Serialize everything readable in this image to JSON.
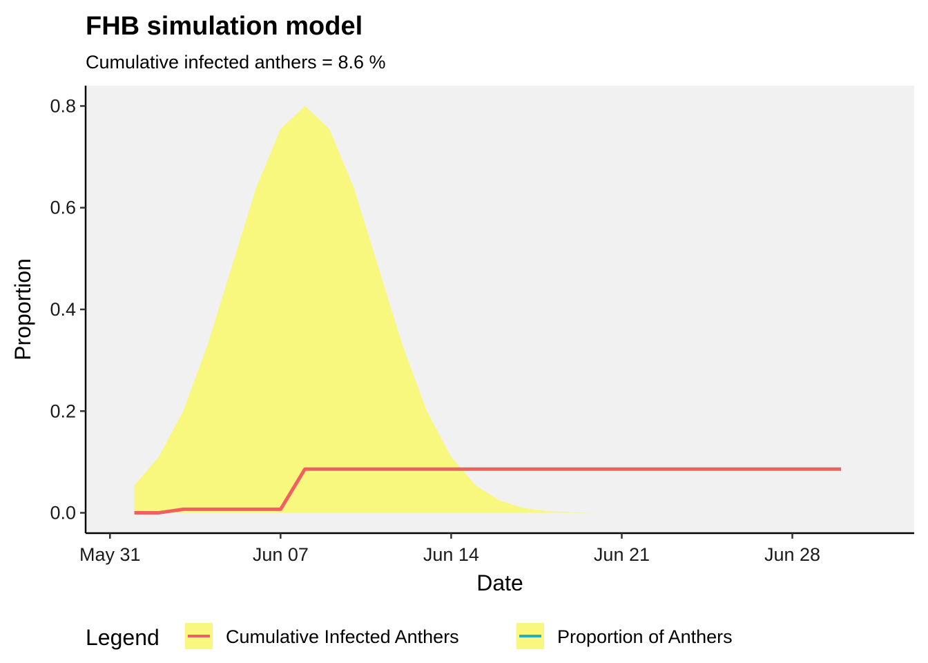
{
  "chart_data": {
    "type": "area",
    "title": "FHB simulation model",
    "subtitle": "Cumulative infected anthers =  8.6 %",
    "xlabel": "Date",
    "ylabel": "Proportion",
    "xlim": [
      "2021-05-30",
      "2021-07-03"
    ],
    "ylim": [
      -0.04,
      0.84
    ],
    "x_ticks": [
      {
        "date": "2021-05-31",
        "label": "May 31"
      },
      {
        "date": "2021-06-07",
        "label": "Jun 07"
      },
      {
        "date": "2021-06-14",
        "label": "Jun 14"
      },
      {
        "date": "2021-06-21",
        "label": "Jun 21"
      },
      {
        "date": "2021-06-28",
        "label": "Jun 28"
      }
    ],
    "y_ticks": [
      {
        "value": 0.0,
        "label": "0.0"
      },
      {
        "value": 0.2,
        "label": "0.2"
      },
      {
        "value": 0.4,
        "label": "0.4"
      },
      {
        "value": 0.6,
        "label": "0.6"
      },
      {
        "value": 0.8,
        "label": "0.8"
      }
    ],
    "grid": false,
    "panel_background": "#f1f1f1",
    "legend": {
      "title": "Legend",
      "position": "bottom",
      "entries": [
        {
          "label": "Cumulative Infected Anthers",
          "line_color": "#f06060",
          "key_fill": "#f8f87e"
        },
        {
          "label": "Proportion of Anthers",
          "line_color": "#1fb4b9",
          "key_fill": "#f8f87e"
        }
      ]
    },
    "series": [
      {
        "name": "Proportion of Anthers",
        "kind": "area",
        "color": "#f8f87e",
        "points": [
          [
            "2021-06-01",
            0.054
          ],
          [
            "2021-06-02",
            0.11
          ],
          [
            "2021-06-03",
            0.2
          ],
          [
            "2021-06-04",
            0.33
          ],
          [
            "2021-06-05",
            0.485
          ],
          [
            "2021-06-06",
            0.64
          ],
          [
            "2021-06-07",
            0.755
          ],
          [
            "2021-06-08",
            0.8
          ],
          [
            "2021-06-09",
            0.755
          ],
          [
            "2021-06-10",
            0.64
          ],
          [
            "2021-06-11",
            0.485
          ],
          [
            "2021-06-12",
            0.33
          ],
          [
            "2021-06-13",
            0.2
          ],
          [
            "2021-06-14",
            0.11
          ],
          [
            "2021-06-15",
            0.054
          ],
          [
            "2021-06-16",
            0.024
          ],
          [
            "2021-06-17",
            0.009
          ],
          [
            "2021-06-18",
            0.003
          ],
          [
            "2021-06-19",
            0.001
          ],
          [
            "2021-06-20",
            0.0
          ]
        ]
      },
      {
        "name": "Cumulative Infected Anthers",
        "kind": "line",
        "color": "#f06060",
        "points": [
          [
            "2021-06-01",
            0.0
          ],
          [
            "2021-06-02",
            0.0
          ],
          [
            "2021-06-03",
            0.007
          ],
          [
            "2021-06-04",
            0.007
          ],
          [
            "2021-06-05",
            0.007
          ],
          [
            "2021-06-06",
            0.007
          ],
          [
            "2021-06-07",
            0.007
          ],
          [
            "2021-06-08",
            0.086
          ],
          [
            "2021-06-09",
            0.086
          ],
          [
            "2021-06-14",
            0.086
          ],
          [
            "2021-06-21",
            0.086
          ],
          [
            "2021-06-28",
            0.086
          ],
          [
            "2021-06-30",
            0.086
          ]
        ]
      }
    ]
  }
}
